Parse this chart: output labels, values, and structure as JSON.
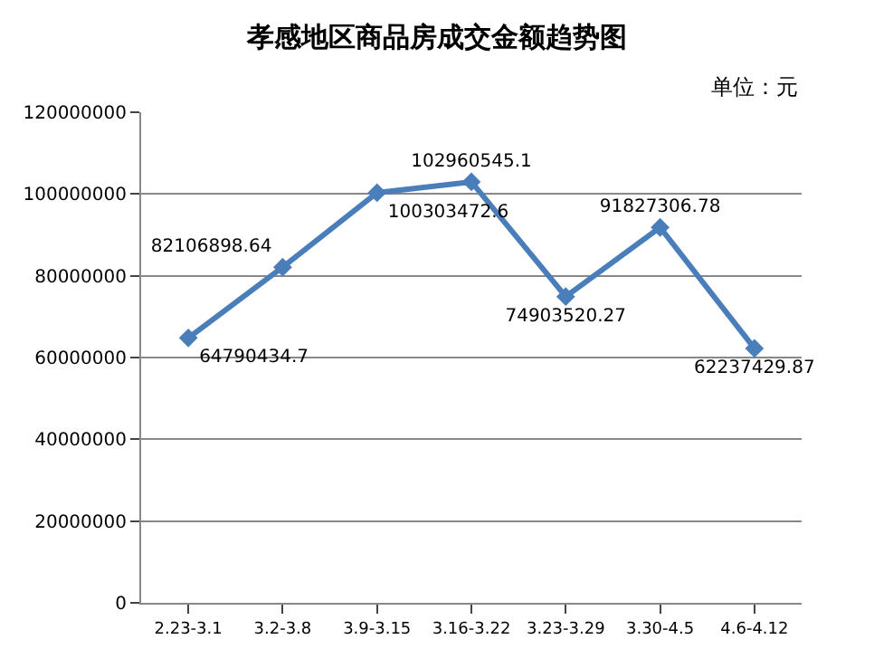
{
  "chart_data": {
    "type": "line",
    "title": "孝感地区商品房成交金额趋势图",
    "annotations": [
      "单位：元"
    ],
    "categories": [
      "2.23-3.1",
      "3.2-3.8",
      "3.9-3.15",
      "3.16-3.22",
      "3.23-3.29",
      "3.30-4.5",
      "4.6-4.12"
    ],
    "series": [
      {
        "color": "#4a7ebb",
        "values": [
          64790434.7,
          82106898.64,
          100303472.6,
          102960545.1,
          74903520.27,
          91827306.78,
          62237429.87
        ]
      }
    ],
    "ylim": [
      0,
      120000000
    ],
    "yticks": [
      0,
      20000000,
      40000000,
      60000000,
      80000000,
      100000000,
      120000000
    ],
    "grid": "y",
    "marker": "diamond",
    "data_labels": true,
    "legend": false
  }
}
